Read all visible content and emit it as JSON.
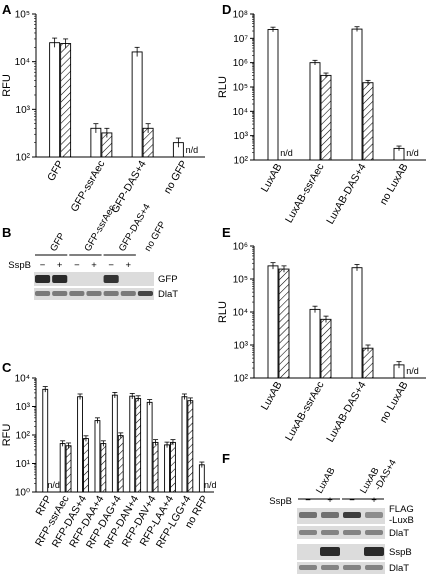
{
  "colors": {
    "open": "#ffffff",
    "hatch": "#000000",
    "blot_bg": "#dcdcdc",
    "band": "#2a2a2a"
  },
  "nd_label": "n/d",
  "chart_data": [
    {
      "panel": "A",
      "type": "bar",
      "ylabel": "RFU",
      "scale": "log",
      "ylim": [
        100,
        100000
      ],
      "tick_labels": [
        "10²",
        "10³",
        "10⁴",
        "10⁵"
      ],
      "categories": [
        "GFP",
        "GFP-ssrAec",
        "GFP-DAS+4",
        "no GFP"
      ],
      "series": [
        {
          "name": "−",
          "style": "open",
          "values": [
            25000,
            400,
            16000,
            200
          ]
        },
        {
          "name": "+",
          "style": "hatched",
          "values": [
            24000,
            320,
            400,
            null
          ]
        }
      ]
    },
    {
      "panel": "C",
      "type": "bar",
      "ylabel": "RFU",
      "scale": "log",
      "ylim": [
        1,
        10000
      ],
      "tick_labels": [
        "10⁰",
        "10¹",
        "10²",
        "10³",
        "10⁴"
      ],
      "categories": [
        "RFP",
        "RFP-ssrAec",
        "RFP-DAS+4",
        "RFP-DAA+4",
        "RFP-DAG+4",
        "RFP-DAN+4",
        "RFP-DAV+4",
        "RFP-LAA+4",
        "RFP-LGG+4",
        "no RFP"
      ],
      "series": [
        {
          "name": "−",
          "style": "open",
          "values": [
            4000,
            50,
            2200,
            320,
            2500,
            2300,
            1400,
            45,
            2200,
            9
          ]
        },
        {
          "name": "+",
          "style": "hatched",
          "values": [
            null,
            42,
            75,
            50,
            95,
            1900,
            55,
            55,
            1600,
            null
          ]
        }
      ]
    },
    {
      "panel": "D",
      "type": "bar",
      "ylabel": "RLU",
      "scale": "log",
      "ylim": [
        100,
        100000000
      ],
      "tick_labels": [
        "10²",
        "10³",
        "10⁴",
        "10⁵",
        "10⁶",
        "10⁷",
        "10⁸"
      ],
      "categories": [
        "LuxAB",
        "LuxAB-ssrAec",
        "LuxAB-DAS+4",
        "no LuxAB"
      ],
      "series": [
        {
          "name": "−",
          "style": "open",
          "values": [
            23000000,
            1000000,
            24000000,
            300
          ]
        },
        {
          "name": "+",
          "style": "hatched",
          "values": [
            null,
            300000,
            150000,
            null
          ]
        }
      ]
    },
    {
      "panel": "E",
      "type": "bar",
      "ylabel": "RLU",
      "scale": "log",
      "ylim": [
        100,
        1000000
      ],
      "tick_labels": [
        "10²",
        "10³",
        "10⁴",
        "10⁵",
        "10⁶"
      ],
      "categories": [
        "LuxAB",
        "LuxAB-ssrAec",
        "LuxAB-DAS+4",
        "no LuxAB"
      ],
      "series": [
        {
          "name": "−",
          "style": "open",
          "values": [
            250000,
            12000,
            220000,
            250
          ]
        },
        {
          "name": "+",
          "style": "hatched",
          "values": [
            200000,
            6000,
            800,
            null
          ]
        }
      ]
    }
  ],
  "blots": {
    "B": {
      "panel": "B",
      "groups": [
        "GFP",
        "GFP-ssrAec",
        "GFP-DAS+4",
        "no GFP"
      ],
      "sspb_label": "SspB",
      "lane_signs": [
        "−",
        "+",
        "−",
        "+",
        "−",
        "+"
      ],
      "row_labels": [
        "GFP",
        "DlaT"
      ]
    },
    "F": {
      "panel": "F",
      "groups": [
        "LuxAB",
        "LuxAB\n-DAS+4"
      ],
      "group_line1": [
        "LuxAB",
        "LuxAB"
      ],
      "group_line2": [
        "",
        "-DAS+4"
      ],
      "sspb_label": "SspB",
      "lane_signs": [
        "−",
        "+",
        "−",
        "+"
      ],
      "row_labels": [
        "FLAG",
        "-LuxB",
        "DlaT",
        "SspB",
        "DlaT"
      ]
    }
  }
}
